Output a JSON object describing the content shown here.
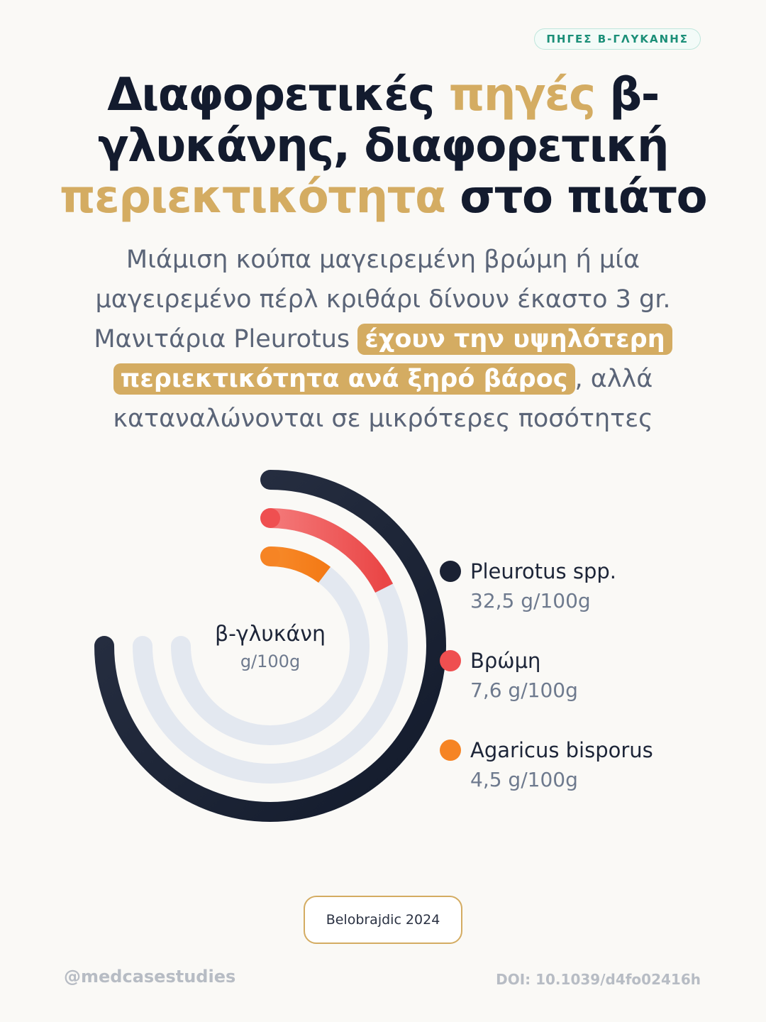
{
  "badge": "ΠΗΓΕΣ Β-ΓΛΥΚΑΝΗΣ",
  "title": {
    "part1": "Διαφορετικές ",
    "highlight1": "πηγές",
    "part2": " β-γλυκάνης, διαφορετική ",
    "highlight2": "περιεκτικότητα",
    "part3": " στο πιάτο"
  },
  "subtitle": {
    "part1": "Μιάμιση κούπα μαγειρεμένη βρώμη ή μία μαγειρεμένο πέρλ κριθάρι δίνουν έκαστο 3 gr. Μανιτάρια Pleurotus ",
    "highlight": "έχουν την υψηλότερη περιεκτικότητα ανά ξηρό βάρος",
    "part2": ", αλλά καταναλώνονται σε μικρότερες ποσότητες"
  },
  "chart_data": {
    "type": "radial-bar",
    "center_label": "β-γλυκάνη",
    "unit": "g/100g",
    "max": 32.5,
    "series": [
      {
        "name": "Pleurotus spp.",
        "value": 32.5,
        "value_label": "32,5 g/100g",
        "color": "#1a2133"
      },
      {
        "name": "Βρώμη",
        "value": 7.6,
        "value_label": "7,6 g/100g",
        "color": "#ef4f50"
      },
      {
        "name": "Agaricus bisporus",
        "value": 4.5,
        "value_label": "4,5 g/100g",
        "color": "#f68424"
      }
    ],
    "track_color": "#e3e8f0"
  },
  "source": "Belobrajdic 2024",
  "footer": {
    "handle": "@medcasestudies",
    "doi": "DOI: 10.1039/d4fo02416h"
  }
}
